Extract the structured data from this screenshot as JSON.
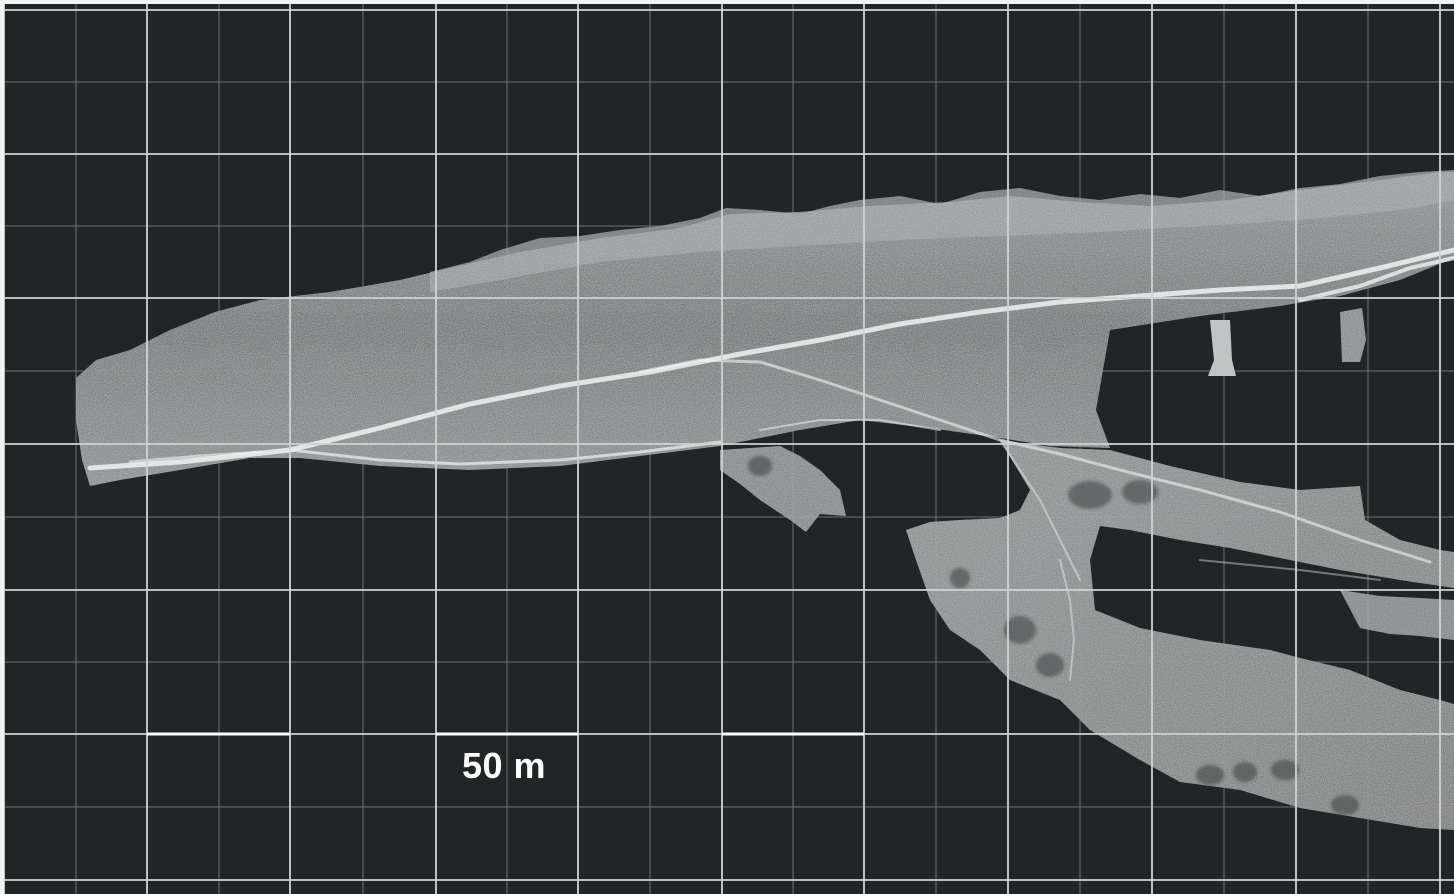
{
  "scale_bar": {
    "label": "50 m",
    "segments": 3,
    "length_units": "m",
    "length_value": 50
  },
  "grid": {
    "major_lines": true,
    "minor_lines": true,
    "line_color": "#cfd3d4",
    "minor_line_color": "#6c7273"
  },
  "colors": {
    "background": "#212526",
    "point_cloud_base": "#6f7374",
    "point_cloud_light": "#c7cacb",
    "point_cloud_highlight": "#eef0f0"
  },
  "icons": {
    "scale_bar": "scale-bar-icon"
  }
}
